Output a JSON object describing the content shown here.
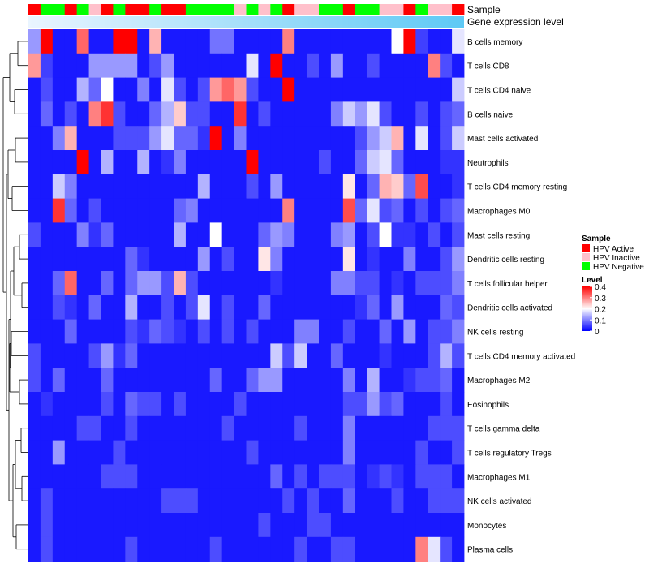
{
  "chart_data": {
    "type": "heatmap",
    "annotation_labels": [
      "Sample",
      "Gene expression level"
    ],
    "colors": {
      "HPV Active": "#ff0000",
      "HPV Inactive": "#ffc0cb",
      "HPV Negative": "#00ff00",
      "low": "#0000ff",
      "mid": "#ffffff",
      "high": "#ff0000",
      "expr_start": "#eaf5ff",
      "expr_end": "#5ec9f5"
    },
    "legend": {
      "sample_title": "Sample",
      "sample_items": [
        "HPV Active",
        "HPV Inactive",
        "HPV Negative"
      ],
      "level_title": "Level",
      "level_ticks": [
        "0.4",
        "0.3",
        "0.2",
        "0.1",
        "0"
      ],
      "range": [
        0,
        0.4
      ],
      "placement": "right"
    },
    "samples": [
      "HPV Active",
      "HPV Negative",
      "HPV Negative",
      "HPV Active",
      "HPV Negative",
      "HPV Inactive",
      "HPV Active",
      "HPV Negative",
      "HPV Active",
      "HPV Active",
      "HPV Negative",
      "HPV Active",
      "HPV Active",
      "HPV Negative",
      "HPV Negative",
      "HPV Negative",
      "HPV Negative",
      "HPV Inactive",
      "HPV Negative",
      "HPV Inactive",
      "HPV Negative",
      "HPV Active",
      "HPV Inactive",
      "HPV Inactive",
      "HPV Negative",
      "HPV Negative",
      "HPV Active",
      "HPV Negative",
      "HPV Negative",
      "HPV Inactive",
      "HPV Inactive",
      "HPV Active",
      "HPV Negative",
      "HPV Inactive",
      "HPV Inactive",
      "HPV Active"
    ],
    "rows": [
      "B cells memory",
      "T cells CD8",
      "T cells CD4 naive",
      "B cells naive",
      "Mast cells activated",
      "Neutrophils",
      "T cells CD4 memory resting",
      "Macrophages M0",
      "Mast cells resting",
      "Dendritic cells resting",
      "T cells follicular helper",
      "Dendritic cells activated",
      "NK cells resting",
      "T cells CD4 memory activated",
      "Macrophages M2",
      "Eosinophils",
      "T cells gamma delta",
      "T cells regulatory  Tregs",
      "Macrophages M1",
      "NK cells activated",
      "Monocytes",
      "Plasma cells"
    ],
    "values": [
      [
        0.12,
        0.4,
        0.02,
        0.02,
        0.32,
        0.02,
        0.02,
        0.4,
        0.4,
        0.02,
        0.26,
        0.02,
        0.02,
        0.02,
        0.02,
        0.09,
        0.09,
        0.02,
        0.02,
        0.02,
        0.02,
        0.3,
        0.02,
        0.02,
        0.02,
        0.02,
        0.02,
        0.02,
        0.02,
        0.02,
        0.2,
        0.4,
        0.05,
        0.02,
        0.02,
        0.18
      ],
      [
        0.28,
        0.05,
        0.02,
        0.02,
        0.02,
        0.12,
        0.12,
        0.12,
        0.12,
        0.02,
        0.06,
        0.12,
        0.02,
        0.02,
        0.02,
        0.02,
        0.02,
        0.02,
        0.18,
        0.02,
        0.4,
        0.02,
        0.02,
        0.06,
        0.02,
        0.12,
        0.02,
        0.02,
        0.06,
        0.02,
        0.02,
        0.02,
        0.02,
        0.3,
        0.06,
        0.02
      ],
      [
        0.02,
        0.06,
        0.02,
        0.02,
        0.14,
        0.08,
        0.2,
        0.02,
        0.02,
        0.1,
        0.02,
        0.18,
        0.06,
        0.02,
        0.06,
        0.28,
        0.32,
        0.28,
        0.06,
        0.02,
        0.02,
        0.4,
        0.02,
        0.02,
        0.02,
        0.02,
        0.02,
        0.02,
        0.02,
        0.02,
        0.02,
        0.02,
        0.02,
        0.02,
        0.02,
        0.16
      ],
      [
        0.02,
        0.08,
        0.02,
        0.06,
        0.02,
        0.3,
        0.36,
        0.06,
        0.02,
        0.02,
        0.08,
        0.14,
        0.24,
        0.06,
        0.06,
        0.02,
        0.02,
        0.36,
        0.02,
        0.06,
        0.02,
        0.02,
        0.02,
        0.02,
        0.02,
        0.1,
        0.16,
        0.12,
        0.18,
        0.06,
        0.02,
        0.02,
        0.06,
        0.02,
        0.06,
        0.08
      ],
      [
        0.02,
        0.02,
        0.1,
        0.26,
        0.02,
        0.02,
        0.02,
        0.06,
        0.06,
        0.06,
        0.12,
        0.18,
        0.08,
        0.08,
        0.04,
        0.4,
        0.02,
        0.1,
        0.02,
        0.02,
        0.02,
        0.02,
        0.02,
        0.02,
        0.02,
        0.02,
        0.02,
        0.06,
        0.12,
        0.16,
        0.26,
        0.02,
        0.18,
        0.02,
        0.06,
        0.16
      ],
      [
        0.02,
        0.02,
        0.02,
        0.02,
        0.4,
        0.02,
        0.14,
        0.02,
        0.02,
        0.14,
        0.02,
        0.04,
        0.1,
        0.02,
        0.02,
        0.02,
        0.02,
        0.02,
        0.4,
        0.02,
        0.02,
        0.02,
        0.02,
        0.02,
        0.06,
        0.02,
        0.02,
        0.08,
        0.16,
        0.18,
        0.08,
        0.02,
        0.02,
        0.02,
        0.04,
        0.04
      ],
      [
        0.02,
        0.02,
        0.16,
        0.1,
        0.02,
        0.02,
        0.02,
        0.02,
        0.02,
        0.02,
        0.02,
        0.02,
        0.02,
        0.02,
        0.14,
        0.02,
        0.02,
        0.02,
        0.06,
        0.02,
        0.12,
        0.02,
        0.02,
        0.02,
        0.02,
        0.02,
        0.22,
        0.02,
        0.08,
        0.26,
        0.24,
        0.08,
        0.34,
        0.02,
        0.02,
        0.04
      ],
      [
        0.02,
        0.02,
        0.36,
        0.08,
        0.02,
        0.06,
        0.02,
        0.02,
        0.02,
        0.02,
        0.02,
        0.02,
        0.08,
        0.1,
        0.02,
        0.02,
        0.02,
        0.02,
        0.02,
        0.02,
        0.02,
        0.3,
        0.02,
        0.02,
        0.02,
        0.02,
        0.34,
        0.08,
        0.18,
        0.06,
        0.08,
        0.02,
        0.06,
        0.02,
        0.06,
        0.08
      ],
      [
        0.06,
        0.02,
        0.02,
        0.02,
        0.1,
        0.04,
        0.08,
        0.02,
        0.02,
        0.02,
        0.02,
        0.02,
        0.14,
        0.02,
        0.02,
        0.2,
        0.02,
        0.02,
        0.02,
        0.08,
        0.12,
        0.1,
        0.02,
        0.02,
        0.02,
        0.1,
        0.12,
        0.02,
        0.06,
        0.2,
        0.04,
        0.04,
        0.02,
        0.06,
        0.02,
        0.06
      ],
      [
        0.02,
        0.02,
        0.02,
        0.02,
        0.02,
        0.02,
        0.02,
        0.02,
        0.08,
        0.04,
        0.02,
        0.02,
        0.02,
        0.02,
        0.12,
        0.02,
        0.06,
        0.02,
        0.02,
        0.22,
        0.1,
        0.02,
        0.02,
        0.02,
        0.02,
        0.02,
        0.22,
        0.02,
        0.04,
        0.02,
        0.02,
        0.1,
        0.02,
        0.02,
        0.06,
        0.12
      ],
      [
        0.02,
        0.02,
        0.08,
        0.32,
        0.02,
        0.02,
        0.08,
        0.02,
        0.08,
        0.12,
        0.12,
        0.06,
        0.26,
        0.06,
        0.02,
        0.02,
        0.02,
        0.02,
        0.02,
        0.02,
        0.04,
        0.02,
        0.02,
        0.02,
        0.02,
        0.1,
        0.1,
        0.06,
        0.06,
        0.02,
        0.04,
        0.02,
        0.06,
        0.06,
        0.06,
        0.1
      ],
      [
        0.02,
        0.02,
        0.06,
        0.04,
        0.02,
        0.08,
        0.02,
        0.02,
        0.14,
        0.02,
        0.02,
        0.06,
        0.02,
        0.06,
        0.18,
        0.02,
        0.06,
        0.02,
        0.02,
        0.08,
        0.02,
        0.02,
        0.02,
        0.02,
        0.02,
        0.02,
        0.02,
        0.04,
        0.08,
        0.02,
        0.12,
        0.02,
        0.02,
        0.02,
        0.08,
        0.06
      ],
      [
        0.02,
        0.02,
        0.02,
        0.08,
        0.02,
        0.02,
        0.02,
        0.02,
        0.06,
        0.04,
        0.08,
        0.06,
        0.04,
        0.02,
        0.06,
        0.02,
        0.06,
        0.02,
        0.06,
        0.02,
        0.02,
        0.02,
        0.1,
        0.1,
        0.02,
        0.02,
        0.06,
        0.02,
        0.02,
        0.08,
        0.02,
        0.12,
        0.02,
        0.06,
        0.06,
        0.1
      ],
      [
        0.06,
        0.02,
        0.02,
        0.02,
        0.02,
        0.06,
        0.12,
        0.04,
        0.08,
        0.02,
        0.02,
        0.02,
        0.02,
        0.02,
        0.02,
        0.02,
        0.02,
        0.02,
        0.02,
        0.02,
        0.16,
        0.06,
        0.16,
        0.02,
        0.02,
        0.08,
        0.02,
        0.02,
        0.02,
        0.04,
        0.02,
        0.02,
        0.02,
        0.06,
        0.14,
        0.06
      ],
      [
        0.06,
        0.02,
        0.08,
        0.02,
        0.02,
        0.02,
        0.08,
        0.02,
        0.02,
        0.02,
        0.02,
        0.02,
        0.02,
        0.02,
        0.02,
        0.08,
        0.02,
        0.02,
        0.08,
        0.12,
        0.12,
        0.02,
        0.02,
        0.02,
        0.02,
        0.02,
        0.1,
        0.02,
        0.14,
        0.02,
        0.02,
        0.04,
        0.06,
        0.06,
        0.08,
        0.02
      ],
      [
        0.02,
        0.04,
        0.02,
        0.02,
        0.02,
        0.02,
        0.06,
        0.02,
        0.08,
        0.06,
        0.06,
        0.02,
        0.06,
        0.02,
        0.02,
        0.02,
        0.02,
        0.06,
        0.02,
        0.02,
        0.02,
        0.02,
        0.02,
        0.02,
        0.02,
        0.02,
        0.06,
        0.06,
        0.12,
        0.06,
        0.08,
        0.02,
        0.02,
        0.02,
        0.06,
        0.02
      ],
      [
        0.02,
        0.02,
        0.02,
        0.02,
        0.06,
        0.06,
        0.02,
        0.02,
        0.06,
        0.02,
        0.02,
        0.02,
        0.02,
        0.02,
        0.02,
        0.02,
        0.06,
        0.02,
        0.02,
        0.02,
        0.02,
        0.02,
        0.06,
        0.02,
        0.02,
        0.02,
        0.1,
        0.02,
        0.02,
        0.02,
        0.02,
        0.02,
        0.02,
        0.06,
        0.06,
        0.06
      ],
      [
        0.02,
        0.02,
        0.12,
        0.02,
        0.02,
        0.02,
        0.02,
        0.06,
        0.02,
        0.02,
        0.02,
        0.02,
        0.02,
        0.02,
        0.02,
        0.02,
        0.02,
        0.02,
        0.06,
        0.02,
        0.02,
        0.02,
        0.02,
        0.02,
        0.02,
        0.02,
        0.1,
        0.02,
        0.02,
        0.02,
        0.02,
        0.02,
        0.06,
        0.02,
        0.02,
        0.06
      ],
      [
        0.02,
        0.02,
        0.02,
        0.02,
        0.02,
        0.02,
        0.06,
        0.06,
        0.06,
        0.02,
        0.02,
        0.02,
        0.02,
        0.02,
        0.02,
        0.02,
        0.02,
        0.02,
        0.02,
        0.02,
        0.08,
        0.02,
        0.06,
        0.02,
        0.06,
        0.06,
        0.06,
        0.02,
        0.04,
        0.06,
        0.04,
        0.02,
        0.06,
        0.06,
        0.06,
        0.02
      ],
      [
        0.02,
        0.06,
        0.02,
        0.02,
        0.02,
        0.02,
        0.02,
        0.02,
        0.02,
        0.02,
        0.02,
        0.06,
        0.06,
        0.06,
        0.02,
        0.02,
        0.02,
        0.02,
        0.02,
        0.02,
        0.02,
        0.06,
        0.02,
        0.06,
        0.02,
        0.02,
        0.08,
        0.02,
        0.02,
        0.02,
        0.06,
        0.02,
        0.02,
        0.06,
        0.06,
        0.06
      ],
      [
        0.02,
        0.06,
        0.02,
        0.02,
        0.02,
        0.02,
        0.02,
        0.02,
        0.02,
        0.02,
        0.02,
        0.02,
        0.02,
        0.02,
        0.02,
        0.02,
        0.02,
        0.02,
        0.02,
        0.06,
        0.02,
        0.02,
        0.02,
        0.06,
        0.06,
        0.02,
        0.02,
        0.02,
        0.02,
        0.02,
        0.02,
        0.02,
        0.02,
        0.02,
        0.02,
        0.02
      ],
      [
        0.02,
        0.06,
        0.02,
        0.02,
        0.02,
        0.02,
        0.02,
        0.02,
        0.06,
        0.02,
        0.02,
        0.02,
        0.02,
        0.02,
        0.02,
        0.06,
        0.02,
        0.02,
        0.02,
        0.02,
        0.02,
        0.02,
        0.06,
        0.02,
        0.02,
        0.06,
        0.06,
        0.02,
        0.02,
        0.02,
        0.02,
        0.02,
        0.3,
        0.18,
        0.06,
        0.02
      ]
    ]
  }
}
